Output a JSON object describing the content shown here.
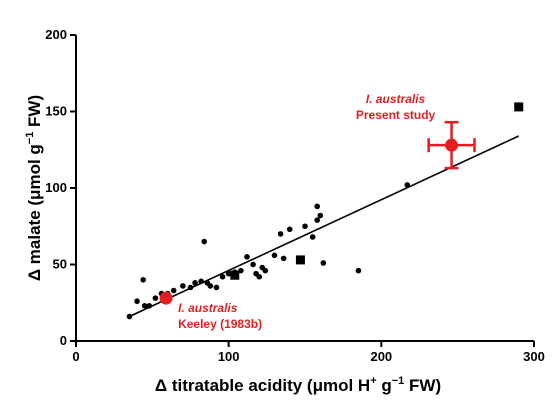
{
  "chart_data": {
    "type": "scatter",
    "xlabel": "Δ titratable acidity (μmol H+ g−1 FW)",
    "ylabel": "Δ malate (μmol g−1 FW)",
    "xlim": [
      0,
      300
    ],
    "ylim": [
      0,
      200
    ],
    "x_ticks": [
      0,
      100,
      200,
      300
    ],
    "y_ticks": [
      0,
      50,
      100,
      150,
      200
    ],
    "x_tick_labels": [
      "0",
      "100",
      "200",
      "300"
    ],
    "y_tick_labels": [
      "0",
      "50",
      "100",
      "150",
      "200"
    ],
    "grid": false,
    "series": [
      {
        "marker": "circle",
        "color": "#000000",
        "points": [
          [
            35,
            16
          ],
          [
            40,
            26
          ],
          [
            44,
            40
          ],
          [
            45,
            23
          ],
          [
            48,
            23
          ],
          [
            52,
            28
          ],
          [
            56,
            31
          ],
          [
            60,
            31
          ],
          [
            64,
            33
          ],
          [
            70,
            36
          ],
          [
            75,
            35
          ],
          [
            78,
            38
          ],
          [
            82,
            39
          ],
          [
            84,
            65
          ],
          [
            86,
            38
          ],
          [
            88,
            36
          ],
          [
            92,
            35
          ],
          [
            96,
            42
          ],
          [
            100,
            44
          ],
          [
            104,
            45
          ],
          [
            108,
            46
          ],
          [
            112,
            55
          ],
          [
            116,
            50
          ],
          [
            118,
            44
          ],
          [
            120,
            42
          ],
          [
            122,
            48
          ],
          [
            124,
            46
          ],
          [
            130,
            56
          ],
          [
            134,
            70
          ],
          [
            136,
            54
          ],
          [
            140,
            73
          ],
          [
            150,
            75
          ],
          [
            155,
            68
          ],
          [
            158,
            88
          ],
          [
            158,
            79
          ],
          [
            160,
            82
          ],
          [
            162,
            51
          ],
          [
            185,
            46
          ],
          [
            217,
            102
          ]
        ]
      },
      {
        "marker": "square",
        "color": "#000000",
        "points": [
          [
            104,
            43
          ],
          [
            147,
            53
          ],
          [
            290,
            153
          ]
        ]
      }
    ],
    "highlights": [
      {
        "label_line1": "I. australis",
        "label_line2": "Present study",
        "x": 246,
        "y": 128,
        "x_err": 15,
        "y_err": 15,
        "color": "#e41e20"
      },
      {
        "label_line1": "I. australis",
        "label_line2": "Keeley (1983b)",
        "x": 59,
        "y": 28,
        "color": "#e41e20"
      }
    ],
    "trendline": {
      "x": [
        35,
        290
      ],
      "y": [
        16,
        134
      ]
    }
  }
}
